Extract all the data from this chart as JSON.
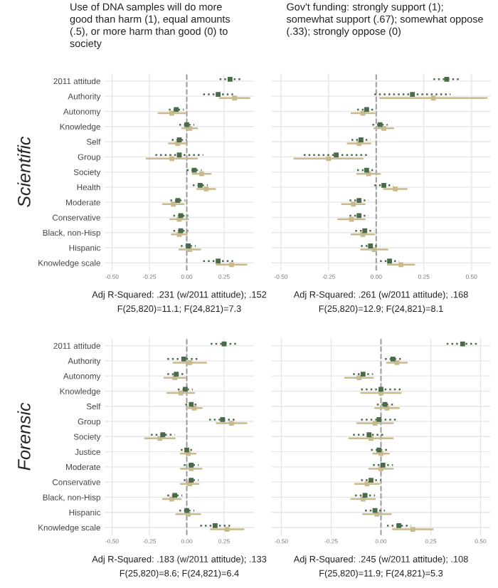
{
  "chart_data": [
    {
      "type": "scatter",
      "orientation": "horizontal",
      "title": "Use of DNA samples will do more good than harm (1), equal amounts (.5), or more harm than good (0) to society",
      "ylabel": "Scientific",
      "categories": [
        "2011 attitude",
        "Authority",
        "Autonomy",
        "Knowledge",
        "Self",
        "Group",
        "Society",
        "Health",
        "Moderate",
        "Conservative",
        "Black, non-Hisp",
        "Hispanic",
        "Knowledge scale"
      ],
      "xlim": [
        -0.55,
        0.45
      ],
      "xticks": [
        {
          "value": -0.5,
          "label": "-0.50"
        },
        {
          "value": -0.25,
          "label": "-0.25"
        },
        {
          "value": 0,
          "label": "0.00"
        },
        {
          "value": 0.25,
          "label": "0.25"
        }
      ],
      "grid": true,
      "marker": "square",
      "ref_lines": [
        {
          "axis": "x",
          "value": 0,
          "line_style": "dashed",
          "color": "#999999"
        }
      ],
      "annotations": [
        "Adj R-Squared: .231 (w/2011 attitude); .152",
        "F(25,820)=11.1; F(24,821)=7.3"
      ],
      "series": [
        {
          "color": "#c9b98e",
          "line_style": "solid",
          "values": [
            null,
            0.32,
            -0.1,
            0.02,
            -0.06,
            -0.1,
            0.1,
            0.13,
            -0.09,
            -0.05,
            -0.05,
            0.02,
            0.3
          ],
          "errors": [
            null,
            0.1,
            0.09,
            0.05,
            0.06,
            0.17,
            0.06,
            0.06,
            0.07,
            0.06,
            0.05,
            0.07,
            0.1
          ]
        },
        {
          "color": "#4a6b4a",
          "line_style": "dotted",
          "values": [
            0.29,
            0.21,
            -0.07,
            0.0,
            -0.05,
            -0.05,
            0.05,
            0.09,
            -0.06,
            -0.04,
            -0.04,
            0.01,
            0.21
          ],
          "errors": [
            0.07,
            0.1,
            0.05,
            0.05,
            0.05,
            0.16,
            0.05,
            0.05,
            0.05,
            0.05,
            0.05,
            0.05,
            0.1
          ]
        }
      ]
    },
    {
      "type": "scatter",
      "orientation": "horizontal",
      "title": "Gov't funding: strongly support (1); somewhat support (.67); somewhat oppose (.33); strongly oppose (0)",
      "categories": [
        null,
        null,
        null,
        null,
        null,
        null,
        null,
        null,
        null,
        null,
        null,
        null,
        null
      ],
      "xlim": [
        -0.55,
        0.6
      ],
      "xticks": [
        {
          "value": -0.5,
          "label": "-0.50"
        },
        {
          "value": -0.25,
          "label": "-0.25"
        },
        {
          "value": 0,
          "label": "0.00"
        },
        {
          "value": 0.25,
          "label": "0.25"
        },
        {
          "value": 0.5,
          "label": "0.50"
        }
      ],
      "tick_labels": "x",
      "grid": true,
      "marker": "square",
      "ref_lines": [
        {
          "axis": "x",
          "value": 0,
          "line_style": "dashed",
          "color": "#999999"
        }
      ],
      "annotations": [
        "Adj R-Squared: .261 (w/2011 attitude); .168",
        "F(25,820)=12.9; F(24,821)=8.1"
      ],
      "series": [
        {
          "color": "#c9b98e",
          "line_style": "solid",
          "values": [
            null,
            0.3,
            -0.07,
            0.04,
            -0.09,
            -0.25,
            -0.04,
            0.1,
            -0.12,
            -0.13,
            -0.07,
            -0.01,
            0.13
          ],
          "errors": [
            null,
            0.28,
            0.06,
            0.05,
            0.06,
            0.18,
            0.06,
            0.06,
            0.06,
            0.07,
            0.06,
            0.07,
            0.07
          ]
        },
        {
          "color": "#4a6b4a",
          "line_style": "dotted",
          "values": [
            0.37,
            0.19,
            -0.05,
            0.02,
            -0.08,
            -0.21,
            -0.05,
            0.04,
            -0.09,
            -0.09,
            -0.06,
            -0.03,
            0.07
          ],
          "errors": [
            0.07,
            0.2,
            0.05,
            0.04,
            0.05,
            0.17,
            0.05,
            0.05,
            0.05,
            0.05,
            0.05,
            0.05,
            0.05
          ]
        }
      ]
    },
    {
      "type": "scatter",
      "orientation": "horizontal",
      "ylabel": "Forensic",
      "categories": [
        "2011 attitude",
        "Authority",
        "Autonomy",
        "Knowledge",
        "Self",
        "Group",
        "Society",
        "Justice",
        "Moderate",
        "Conservative",
        "Black, non-Hisp",
        "Hispanic",
        "Knowledge scale"
      ],
      "xlim": [
        -0.55,
        0.45
      ],
      "xticks": [
        {
          "value": -0.5,
          "label": "-0.50"
        },
        {
          "value": -0.25,
          "label": "-0.25"
        },
        {
          "value": 0,
          "label": "0.00"
        },
        {
          "value": 0.25,
          "label": "0.25"
        }
      ],
      "grid": true,
      "marker": "square",
      "ref_lines": [
        {
          "axis": "x",
          "value": 0,
          "line_style": "dashed",
          "color": "#999999"
        }
      ],
      "annotations": [
        "Adj R-Squared: .183 (w/2011 attitude); .133",
        "F(25,820)=8.6; F(24,821)=6.4"
      ],
      "series": [
        {
          "color": "#c9b98e",
          "line_style": "solid",
          "values": [
            null,
            0.02,
            -0.08,
            -0.04,
            0.05,
            0.3,
            -0.18,
            0.01,
            0.03,
            0.02,
            -0.1,
            0.01,
            0.27
          ],
          "errors": [
            null,
            0.11,
            0.07,
            0.09,
            0.05,
            0.1,
            0.1,
            0.05,
            0.07,
            0.06,
            0.06,
            0.08,
            0.11
          ]
        },
        {
          "color": "#4a6b4a",
          "line_style": "dotted",
          "values": [
            0.25,
            -0.02,
            -0.07,
            -0.01,
            0.03,
            0.24,
            -0.16,
            0.0,
            0.03,
            0.03,
            -0.08,
            0.0,
            0.19
          ],
          "errors": [
            0.09,
            0.11,
            0.06,
            0.05,
            0.04,
            0.09,
            0.08,
            0.04,
            0.05,
            0.05,
            0.05,
            0.05,
            0.1
          ]
        }
      ]
    },
    {
      "type": "scatter",
      "orientation": "horizontal",
      "categories": [
        null,
        null,
        null,
        null,
        null,
        null,
        null,
        null,
        null,
        null,
        null,
        null,
        null
      ],
      "xlim": [
        -0.55,
        0.55
      ],
      "xticks": [
        {
          "value": -0.5,
          "label": "-0.50"
        },
        {
          "value": -0.25,
          "label": "-0.25"
        },
        {
          "value": 0,
          "label": "0.00"
        },
        {
          "value": 0.25,
          "label": "0.25"
        },
        {
          "value": 0.5,
          "label": "0.50"
        }
      ],
      "tick_labels": "x",
      "grid": true,
      "marker": "square",
      "ref_lines": [
        {
          "axis": "x",
          "value": 0,
          "line_style": "dashed",
          "color": "#999999"
        }
      ],
      "annotations": [
        "Adj R-Squared: .245 (w/2011 attitude); .108",
        "F(25,820)=11.9; F(24,821)=5.3"
      ],
      "series": [
        {
          "color": "#c9b98e",
          "line_style": "solid",
          "values": [
            null,
            0.08,
            -0.11,
            0.0,
            0.03,
            -0.03,
            -0.05,
            0.0,
            0.0,
            -0.07,
            -0.09,
            -0.02,
            0.16
          ],
          "errors": [
            null,
            0.05,
            0.07,
            0.1,
            0.06,
            0.09,
            0.11,
            0.04,
            0.06,
            0.06,
            0.06,
            0.07,
            0.1
          ]
        },
        {
          "color": "#4a6b4a",
          "line_style": "dotted",
          "values": [
            0.41,
            0.06,
            -0.09,
            0.0,
            0.02,
            -0.01,
            -0.06,
            -0.01,
            0.01,
            -0.05,
            -0.08,
            -0.03,
            0.09
          ],
          "errors": [
            0.08,
            0.04,
            0.05,
            0.1,
            0.04,
            0.09,
            0.08,
            0.04,
            0.05,
            0.05,
            0.05,
            0.05,
            0.06
          ]
        }
      ]
    }
  ]
}
